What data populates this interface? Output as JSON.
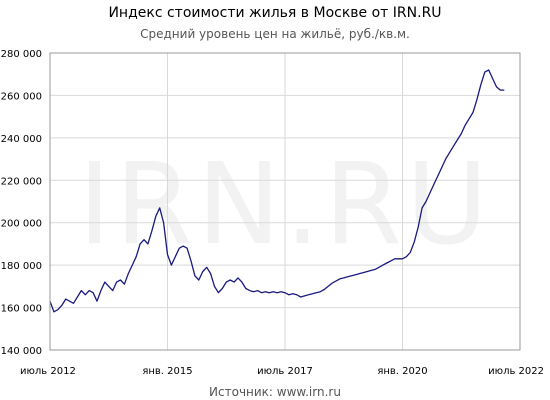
{
  "chart_data": {
    "type": "line",
    "title": "Индекс стоимости жилья в Москве от IRN.RU",
    "subtitle": "Средний уровень цен на жильё, руб./кв.м.",
    "source": "Источник: www.irn.ru",
    "watermark": "IRN.RU",
    "ylim": [
      140000,
      280000
    ],
    "xlim": [
      "2012-07",
      "2022-07"
    ],
    "grid": true,
    "y_ticks": [
      {
        "value": 140000,
        "label": "140 000"
      },
      {
        "value": 160000,
        "label": "160 000"
      },
      {
        "value": 180000,
        "label": "180 000"
      },
      {
        "value": 200000,
        "label": "200 000"
      },
      {
        "value": 220000,
        "label": "220 000"
      },
      {
        "value": 240000,
        "label": "240 000"
      },
      {
        "value": 260000,
        "label": "260 000"
      },
      {
        "value": 280000,
        "label": "280 000"
      }
    ],
    "x_ticks": [
      {
        "date": "2012-07",
        "label": "июль 2012"
      },
      {
        "date": "2015-01",
        "label": "янв. 2015"
      },
      {
        "date": "2017-07",
        "label": "июль 2017"
      },
      {
        "date": "2020-01",
        "label": "янв. 2020"
      },
      {
        "date": "2022-07",
        "label": "июль 2022"
      }
    ],
    "line_color": "#1a1a80",
    "series": [
      {
        "points": [
          [
            "2012-07",
            163000
          ],
          [
            "2012-08",
            158000
          ],
          [
            "2012-09",
            159000
          ],
          [
            "2012-10",
            161000
          ],
          [
            "2012-11",
            164000
          ],
          [
            "2012-12",
            163000
          ],
          [
            "2013-01",
            162000
          ],
          [
            "2013-02",
            165000
          ],
          [
            "2013-03",
            168000
          ],
          [
            "2013-04",
            166000
          ],
          [
            "2013-05",
            168000
          ],
          [
            "2013-06",
            167000
          ],
          [
            "2013-07",
            163000
          ],
          [
            "2013-08",
            168000
          ],
          [
            "2013-09",
            172000
          ],
          [
            "2013-10",
            170000
          ],
          [
            "2013-11",
            168000
          ],
          [
            "2013-12",
            172000
          ],
          [
            "2014-01",
            173000
          ],
          [
            "2014-02",
            171000
          ],
          [
            "2014-03",
            176000
          ],
          [
            "2014-04",
            180000
          ],
          [
            "2014-05",
            184000
          ],
          [
            "2014-06",
            190000
          ],
          [
            "2014-07",
            192000
          ],
          [
            "2014-08",
            190000
          ],
          [
            "2014-09",
            196000
          ],
          [
            "2014-10",
            203000
          ],
          [
            "2014-11",
            207000
          ],
          [
            "2014-12",
            200000
          ],
          [
            "2015-01",
            185000
          ],
          [
            "2015-02",
            180000
          ],
          [
            "2015-03",
            184000
          ],
          [
            "2015-04",
            188000
          ],
          [
            "2015-05",
            189000
          ],
          [
            "2015-06",
            188000
          ],
          [
            "2015-07",
            182000
          ],
          [
            "2015-08",
            175000
          ],
          [
            "2015-09",
            173000
          ],
          [
            "2015-10",
            177000
          ],
          [
            "2015-11",
            179000
          ],
          [
            "2015-12",
            176000
          ],
          [
            "2016-01",
            170000
          ],
          [
            "2016-02",
            167000
          ],
          [
            "2016-03",
            169000
          ],
          [
            "2016-04",
            172000
          ],
          [
            "2016-05",
            173000
          ],
          [
            "2016-06",
            172000
          ],
          [
            "2016-07",
            174000
          ],
          [
            "2016-08",
            172000
          ],
          [
            "2016-09",
            169000
          ],
          [
            "2016-10",
            168000
          ],
          [
            "2016-11",
            167500
          ],
          [
            "2016-12",
            168000
          ],
          [
            "2017-01",
            167000
          ],
          [
            "2017-02",
            167500
          ],
          [
            "2017-03",
            167000
          ],
          [
            "2017-04",
            167500
          ],
          [
            "2017-05",
            167000
          ],
          [
            "2017-06",
            167500
          ],
          [
            "2017-07",
            167000
          ],
          [
            "2017-08",
            166000
          ],
          [
            "2017-09",
            166500
          ],
          [
            "2017-10",
            166000
          ],
          [
            "2017-11",
            165000
          ],
          [
            "2017-12",
            165500
          ],
          [
            "2018-01",
            166000
          ],
          [
            "2018-02",
            166500
          ],
          [
            "2018-03",
            167000
          ],
          [
            "2018-04",
            167500
          ],
          [
            "2018-05",
            168500
          ],
          [
            "2018-06",
            170000
          ],
          [
            "2018-07",
            171500
          ],
          [
            "2018-08",
            172500
          ],
          [
            "2018-09",
            173500
          ],
          [
            "2018-10",
            174000
          ],
          [
            "2018-11",
            174500
          ],
          [
            "2018-12",
            175000
          ],
          [
            "2019-01",
            175500
          ],
          [
            "2019-02",
            176000
          ],
          [
            "2019-03",
            176500
          ],
          [
            "2019-04",
            177000
          ],
          [
            "2019-05",
            177500
          ],
          [
            "2019-06",
            178000
          ],
          [
            "2019-07",
            179000
          ],
          [
            "2019-08",
            180000
          ],
          [
            "2019-09",
            181000
          ],
          [
            "2019-10",
            182000
          ],
          [
            "2019-11",
            183000
          ],
          [
            "2019-12",
            183000
          ],
          [
            "2020-01",
            183000
          ],
          [
            "2020-02",
            184000
          ],
          [
            "2020-03",
            186000
          ],
          [
            "2020-04",
            191000
          ],
          [
            "2020-05",
            198000
          ],
          [
            "2020-06",
            207000
          ],
          [
            "2020-07",
            210000
          ],
          [
            "2020-08",
            214000
          ],
          [
            "2020-09",
            218000
          ],
          [
            "2020-10",
            222000
          ],
          [
            "2020-11",
            226000
          ],
          [
            "2020-12",
            230000
          ],
          [
            "2021-01",
            233000
          ],
          [
            "2021-02",
            236000
          ],
          [
            "2021-03",
            239000
          ],
          [
            "2021-04",
            242000
          ],
          [
            "2021-05",
            246000
          ],
          [
            "2021-06",
            249000
          ],
          [
            "2021-07",
            252000
          ],
          [
            "2021-08",
            258000
          ],
          [
            "2021-09",
            265000
          ],
          [
            "2021-10",
            271000
          ],
          [
            "2021-11",
            272000
          ],
          [
            "2021-12",
            268000
          ],
          [
            "2022-01",
            264000
          ],
          [
            "2022-02",
            262500
          ],
          [
            "2022-03",
            262500
          ]
        ]
      }
    ]
  }
}
